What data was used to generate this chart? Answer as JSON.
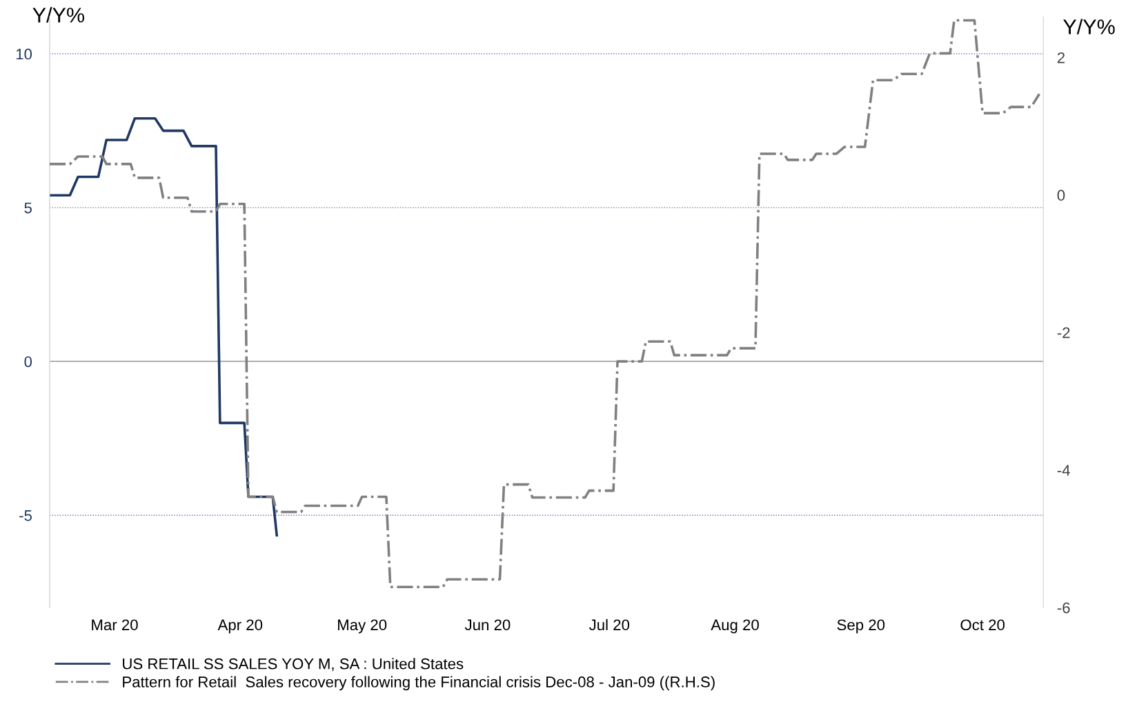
{
  "chart_data": {
    "type": "line",
    "ylabel": "Y/Y%",
    "y2label": "Y/Y%",
    "xlim": [
      "2020-02-14",
      "2020-10-16"
    ],
    "xticks": [
      {
        "value": "2020-03-01",
        "label": "Mar 20"
      },
      {
        "value": "2020-04-01",
        "label": "Apr 20"
      },
      {
        "value": "2020-05-01",
        "label": "May 20"
      },
      {
        "value": "2020-06-01",
        "label": "Jun 20"
      },
      {
        "value": "2020-07-01",
        "label": "Jul 20"
      },
      {
        "value": "2020-08-01",
        "label": "Aug 20"
      },
      {
        "value": "2020-09-01",
        "label": "Sep 20"
      },
      {
        "value": "2020-10-01",
        "label": "Oct 20"
      }
    ],
    "ylim": [
      -8,
      11.2
    ],
    "yticks": [
      -5,
      0,
      5,
      10
    ],
    "y2lim": [
      -6,
      2.59
    ],
    "y2ticks": [
      -6,
      -4,
      -2,
      0,
      2
    ],
    "grid": "y",
    "legend": "bottom",
    "marker": "none",
    "ref_lines": [
      {
        "axis": "y",
        "value": 0,
        "color": "#a6a6a6",
        "line_style": "solid"
      }
    ],
    "series": [
      {
        "name": "US RETAIL SS SALES YOY M, SA : United States",
        "color": "#1f3864",
        "line_style": "solid",
        "x": [
          "2020-02-14",
          "2020-02-19",
          "2020-02-21",
          "2020-02-26",
          "2020-02-28",
          "2020-03-04",
          "2020-03-06",
          "2020-03-11",
          "2020-03-13",
          "2020-03-18",
          "2020-03-20",
          "2020-03-26",
          "2020-03-27",
          "2020-04-02",
          "2020-04-03",
          "2020-04-09",
          "2020-04-10"
        ],
        "values": [
          5.4,
          5.4,
          6.0,
          6.0,
          7.2,
          7.2,
          7.9,
          7.9,
          7.5,
          7.5,
          7.0,
          7.0,
          -2.0,
          -2.0,
          -4.4,
          -4.4,
          -5.65
        ]
      },
      {
        "name": "Pattern for Retail  Sales recovery following the Financial crisis Dec-08 - Jan-09 ((R.H.S)",
        "color": "#808080",
        "line_style": "dashdot",
        "axis": "y2",
        "x": [
          "2020-02-14",
          "2020-02-19",
          "2020-02-21",
          "2020-02-27",
          "2020-02-28",
          "2020-03-05",
          "2020-03-06",
          "2020-03-12",
          "2020-03-13",
          "2020-03-19",
          "2020-03-20",
          "2020-03-26",
          "2020-03-27",
          "2020-04-02",
          "2020-04-03",
          "2020-04-09",
          "2020-04-10",
          "2020-04-16",
          "2020-04-17",
          "2020-04-30",
          "2020-05-01",
          "2020-05-07",
          "2020-05-08",
          "2020-05-21",
          "2020-05-22",
          "2020-06-04",
          "2020-06-05",
          "2020-06-11",
          "2020-06-12",
          "2020-06-25",
          "2020-06-26",
          "2020-07-02",
          "2020-07-03",
          "2020-07-09",
          "2020-07-10",
          "2020-07-16",
          "2020-07-17",
          "2020-07-30",
          "2020-07-31",
          "2020-08-06",
          "2020-08-07",
          "2020-08-13",
          "2020-08-14",
          "2020-08-20",
          "2020-08-21",
          "2020-08-26",
          "2020-08-28",
          "2020-09-02",
          "2020-09-04",
          "2020-09-09",
          "2020-09-11",
          "2020-09-16",
          "2020-09-18",
          "2020-09-23",
          "2020-09-24",
          "2020-09-29",
          "2020-10-01",
          "2020-10-06",
          "2020-10-08",
          "2020-10-13",
          "2020-10-15"
        ],
        "values": [
          0.45,
          0.45,
          0.56,
          0.56,
          0.45,
          0.45,
          0.25,
          0.25,
          -0.04,
          -0.04,
          -0.24,
          -0.24,
          -0.13,
          -0.13,
          -4.39,
          -4.39,
          -4.61,
          -4.61,
          -4.52,
          -4.52,
          -4.39,
          -4.39,
          -5.7,
          -5.7,
          -5.59,
          -5.59,
          -4.21,
          -4.21,
          -4.4,
          -4.4,
          -4.3,
          -4.3,
          -2.42,
          -2.42,
          -2.13,
          -2.13,
          -2.33,
          -2.33,
          -2.23,
          -2.23,
          0.6,
          0.6,
          0.51,
          0.51,
          0.6,
          0.6,
          0.7,
          0.7,
          1.67,
          1.67,
          1.76,
          1.76,
          2.06,
          2.06,
          2.54,
          2.54,
          1.19,
          1.19,
          1.28,
          1.28,
          1.47
        ]
      }
    ]
  }
}
